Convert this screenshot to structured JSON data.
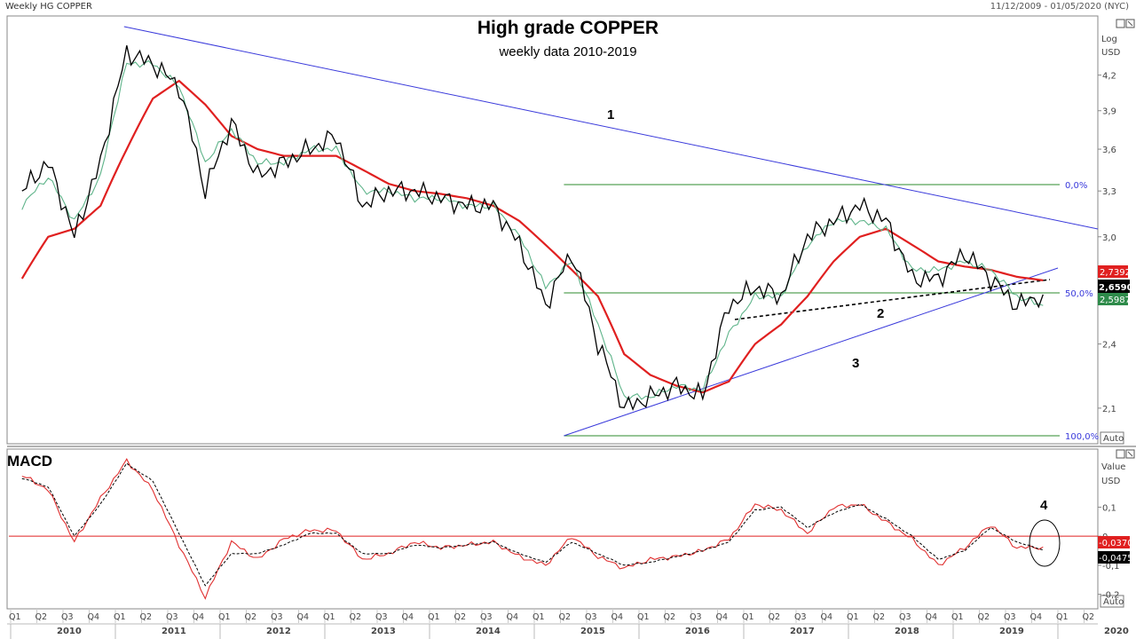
{
  "header": {
    "instrument": "Weekly HG COPPER",
    "date_range": "11/12/2009 - 01/05/2020 (NYC)"
  },
  "main_panel": {
    "title": "High grade COPPER",
    "subtitle": "weekly data 2010-2019",
    "scale_labels": [
      "Log",
      "USD"
    ],
    "auto_button": "Auto",
    "fib_labels": [
      "0,0%",
      "50,0%",
      "100,0%"
    ],
    "annotations": [
      "1",
      "2",
      "3"
    ],
    "price_badges": {
      "ma_red": "2,7392",
      "last": "2,6590",
      "ma_green": "2,5987"
    },
    "colors": {
      "price": "#000000",
      "ma_short": "#5fb48a",
      "ma_long": "#e02020",
      "trend": "#3a3adb",
      "fib": "#2e8b2e"
    }
  },
  "macd_panel": {
    "title": "MACD",
    "scale_labels": [
      "Value",
      "USD"
    ],
    "auto_button": "Auto",
    "annotation": "4",
    "value_badges": {
      "macd": "-0,0370",
      "signal": "-0,0475"
    },
    "colors": {
      "macd": "#e03030",
      "signal": "#000000",
      "zero_line": "#e02020"
    }
  },
  "x_axis": {
    "quarters": [
      "Q1",
      "Q2",
      "Q3",
      "Q4",
      "Q1",
      "Q2",
      "Q3",
      "Q4",
      "Q1",
      "Q2",
      "Q3",
      "Q4",
      "Q1",
      "Q2",
      "Q3",
      "Q4",
      "Q1",
      "Q2",
      "Q3",
      "Q4",
      "Q1",
      "Q2",
      "Q3",
      "Q4",
      "Q1",
      "Q2",
      "Q3",
      "Q4",
      "Q1",
      "Q2",
      "Q3",
      "Q4",
      "Q1",
      "Q2",
      "Q3",
      "Q4",
      "Q1",
      "Q2",
      "Q3",
      "Q4",
      "Q1",
      "Q2"
    ],
    "years": [
      "2010",
      "2011",
      "2012",
      "2013",
      "2014",
      "2015",
      "2016",
      "2017",
      "2018",
      "2019",
      "2020"
    ]
  },
  "chart_data": [
    {
      "type": "line",
      "title": "High grade COPPER",
      "subtitle": "weekly data 2010-2019",
      "ylabel": "USD",
      "y_scale": "log",
      "ylim": [
        1.95,
        4.75
      ],
      "y_ticks": [
        2.1,
        2.4,
        3.0,
        3.3,
        3.6,
        3.9,
        4.2
      ],
      "x": [
        "2010 Q1",
        "2010 Q2",
        "2010 Q3",
        "2010 Q4",
        "2011 Q1",
        "2011 Q2",
        "2011 Q3",
        "2011 Q4",
        "2012 Q1",
        "2012 Q2",
        "2012 Q3",
        "2012 Q4",
        "2013 Q1",
        "2013 Q2",
        "2013 Q3",
        "2013 Q4",
        "2014 Q1",
        "2014 Q2",
        "2014 Q3",
        "2014 Q4",
        "2015 Q1",
        "2015 Q2",
        "2015 Q3",
        "2015 Q4",
        "2016 Q1",
        "2016 Q2",
        "2016 Q3",
        "2016 Q4",
        "2017 Q1",
        "2017 Q2",
        "2017 Q3",
        "2017 Q4",
        "2018 Q1",
        "2018 Q2",
        "2018 Q3",
        "2018 Q4",
        "2019 Q1",
        "2019 Q2",
        "2019 Q3",
        "2019 Q4"
      ],
      "series": [
        {
          "values": [
            3.3,
            3.5,
            3.0,
            3.5,
            4.4,
            4.3,
            4.1,
            3.3,
            3.8,
            3.4,
            3.5,
            3.6,
            3.7,
            3.2,
            3.3,
            3.3,
            3.25,
            3.2,
            3.2,
            2.95,
            2.6,
            2.9,
            2.4,
            2.1,
            2.15,
            2.2,
            2.15,
            2.6,
            2.7,
            2.65,
            3.0,
            3.1,
            3.2,
            3.1,
            2.75,
            2.75,
            2.9,
            2.75,
            2.6,
            2.66
          ]
        },
        {
          "values": [
            3.2,
            3.4,
            3.1,
            3.4,
            4.3,
            4.3,
            4.1,
            3.5,
            3.75,
            3.5,
            3.5,
            3.6,
            3.6,
            3.3,
            3.3,
            3.25,
            3.25,
            3.2,
            3.2,
            3.0,
            2.7,
            2.85,
            2.5,
            2.15,
            2.15,
            2.2,
            2.18,
            2.45,
            2.65,
            2.65,
            2.95,
            3.1,
            3.1,
            3.05,
            2.8,
            2.8,
            2.85,
            2.8,
            2.65,
            2.6
          ]
        },
        {
          "values": [
            2.75,
            3.0,
            3.05,
            3.2,
            3.6,
            4.0,
            4.15,
            3.95,
            3.7,
            3.6,
            3.55,
            3.55,
            3.55,
            3.45,
            3.35,
            3.3,
            3.28,
            3.25,
            3.2,
            3.1,
            2.95,
            2.8,
            2.65,
            2.35,
            2.25,
            2.2,
            2.17,
            2.22,
            2.4,
            2.5,
            2.65,
            2.85,
            3.0,
            3.05,
            2.95,
            2.85,
            2.82,
            2.8,
            2.76,
            2.74
          ]
        }
      ]
    },
    {
      "type": "line",
      "title": "MACD",
      "ylabel": "USD",
      "ylim": [
        -0.25,
        0.3
      ],
      "y_ticks": [
        -0.2,
        -0.1,
        0,
        0.1
      ],
      "x": [
        "2010 Q1",
        "2010 Q2",
        "2010 Q3",
        "2010 Q4",
        "2011 Q1",
        "2011 Q2",
        "2011 Q3",
        "2011 Q4",
        "2012 Q1",
        "2012 Q2",
        "2012 Q3",
        "2012 Q4",
        "2013 Q1",
        "2013 Q2",
        "2013 Q3",
        "2013 Q4",
        "2014 Q1",
        "2014 Q2",
        "2014 Q3",
        "2014 Q4",
        "2015 Q1",
        "2015 Q2",
        "2015 Q3",
        "2015 Q4",
        "2016 Q1",
        "2016 Q2",
        "2016 Q3",
        "2016 Q4",
        "2017 Q1",
        "2017 Q2",
        "2017 Q3",
        "2017 Q4",
        "2018 Q1",
        "2018 Q2",
        "2018 Q3",
        "2018 Q4",
        "2019 Q1",
        "2019 Q2",
        "2019 Q3",
        "2019 Q4"
      ],
      "series": [
        {
          "values": [
            0.21,
            0.16,
            -0.02,
            0.13,
            0.26,
            0.16,
            -0.03,
            -0.21,
            -0.02,
            -0.08,
            -0.01,
            0.02,
            0.02,
            -0.08,
            -0.06,
            -0.02,
            -0.04,
            -0.03,
            -0.02,
            -0.07,
            -0.1,
            0.0,
            -0.07,
            -0.11,
            -0.08,
            -0.07,
            -0.05,
            -0.01,
            0.11,
            0.09,
            0.01,
            0.1,
            0.11,
            0.05,
            -0.01,
            -0.1,
            -0.04,
            0.04,
            -0.04,
            -0.037
          ]
        },
        {
          "values": [
            0.2,
            0.17,
            0.0,
            0.11,
            0.25,
            0.19,
            0.01,
            -0.17,
            -0.06,
            -0.06,
            -0.03,
            0.01,
            0.01,
            -0.06,
            -0.06,
            -0.03,
            -0.04,
            -0.03,
            -0.02,
            -0.06,
            -0.09,
            -0.02,
            -0.06,
            -0.1,
            -0.09,
            -0.07,
            -0.05,
            -0.02,
            0.09,
            0.1,
            0.03,
            0.08,
            0.11,
            0.06,
            0.0,
            -0.08,
            -0.05,
            0.03,
            -0.02,
            -0.047
          ]
        }
      ]
    }
  ]
}
